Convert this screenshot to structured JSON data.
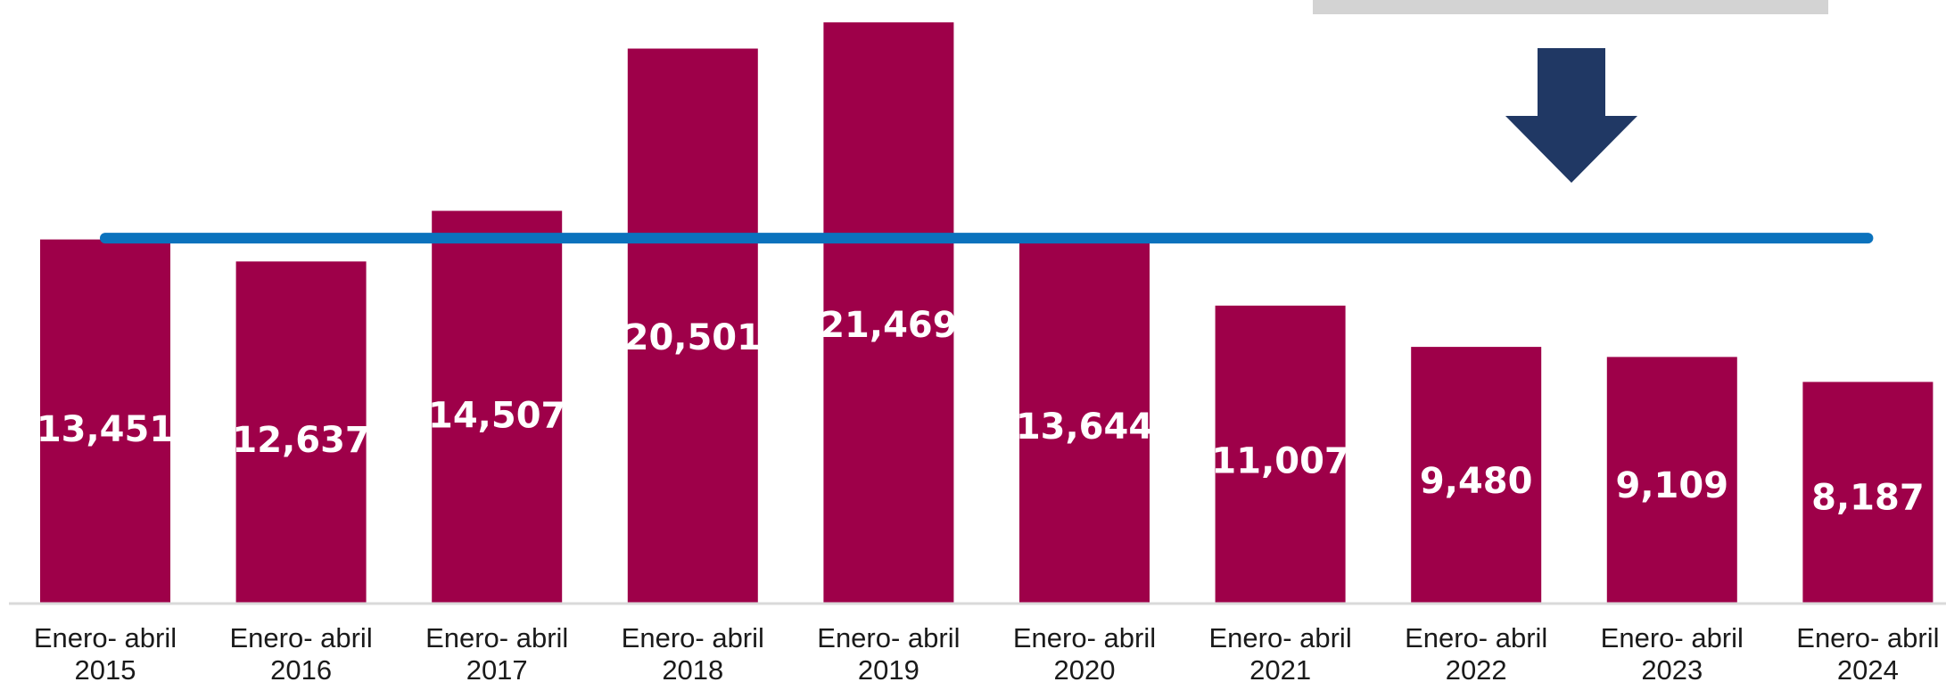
{
  "chart_data": {
    "type": "bar",
    "categories": [
      "Enero- abril 2015",
      "Enero- abril 2016",
      "Enero- abril 2017",
      "Enero- abril 2018",
      "Enero- abril 2019",
      "Enero- abril 2020",
      "Enero- abril 2021",
      "Enero- abril 2022",
      "Enero- abril 2023",
      "Enero- abril 2024"
    ],
    "values": [
      13451,
      12637,
      14507,
      20501,
      21469,
      13644,
      11007,
      9480,
      9109,
      8187
    ],
    "value_labels": [
      "13,451",
      "12,637",
      "14,507",
      "20,501",
      "21,469",
      "13,644",
      "11,007",
      "9,480",
      "9,109",
      "8,187"
    ],
    "reference_line": 13500,
    "ylim": [
      0,
      21900
    ],
    "grid": false,
    "legend": "none",
    "colors": {
      "bar": "#9e0049",
      "line": "#0b72bd",
      "arrow": "#203864",
      "banner": "#d3d3d3"
    },
    "title": "",
    "xlabel": "",
    "ylabel": ""
  },
  "decorations": {
    "arrow_icon": "arrow-down-icon"
  }
}
